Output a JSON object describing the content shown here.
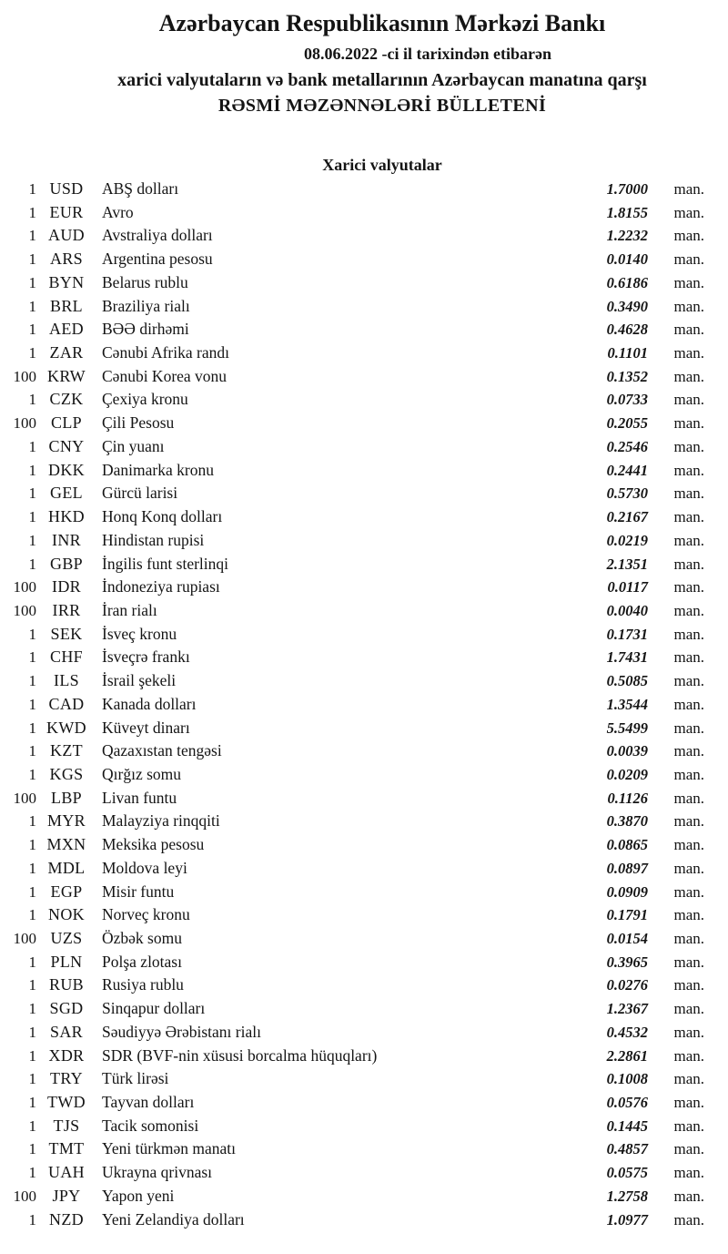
{
  "colors": {
    "background": "#ffffff",
    "text": "#141414"
  },
  "header": {
    "title": "Azərbaycan Respublikasının Mərkəzi Bankı",
    "date_line": "08.06.2022 -ci il tarixindən etibarən",
    "subtitle": "xarici valyutaların və bank metallarının Azərbaycan manatına qarşı",
    "bulletin_title": "RƏSMİ MƏZƏNNƏLƏRİ BÜLLETENİ"
  },
  "section": {
    "title": "Xarici valyutalar"
  },
  "unit_suffix": "man.",
  "rates": [
    {
      "qty": "1",
      "code": "USD",
      "name": "ABŞ dolları",
      "rate": "1.7000"
    },
    {
      "qty": "1",
      "code": "EUR",
      "name": "Avro",
      "rate": "1.8155"
    },
    {
      "qty": "1",
      "code": "AUD",
      "name": "Avstraliya dolları",
      "rate": "1.2232"
    },
    {
      "qty": "1",
      "code": "ARS",
      "name": "Argentina pesosu",
      "rate": "0.0140"
    },
    {
      "qty": "1",
      "code": "BYN",
      "name": "Belarus rublu",
      "rate": "0.6186"
    },
    {
      "qty": "1",
      "code": "BRL",
      "name": "Braziliya rialı",
      "rate": "0.3490"
    },
    {
      "qty": "1",
      "code": "AED",
      "name": "BƏƏ dirhəmi",
      "rate": "0.4628"
    },
    {
      "qty": "1",
      "code": "ZAR",
      "name": "Cənubi Afrika randı",
      "rate": "0.1101"
    },
    {
      "qty": "100",
      "code": "KRW",
      "name": "Cənubi Korea vonu",
      "rate": "0.1352"
    },
    {
      "qty": "1",
      "code": "CZK",
      "name": "Çexiya kronu",
      "rate": "0.0733"
    },
    {
      "qty": "100",
      "code": "CLP",
      "name": "Çili Pesosu",
      "rate": "0.2055"
    },
    {
      "qty": "1",
      "code": "CNY",
      "name": "Çin yuanı",
      "rate": "0.2546"
    },
    {
      "qty": "1",
      "code": "DKK",
      "name": "Danimarka kronu",
      "rate": "0.2441"
    },
    {
      "qty": "1",
      "code": "GEL",
      "name": "Gürcü larisi",
      "rate": "0.5730"
    },
    {
      "qty": "1",
      "code": "HKD",
      "name": "Honq Konq dolları",
      "rate": "0.2167"
    },
    {
      "qty": "1",
      "code": "INR",
      "name": "Hindistan rupisi",
      "rate": "0.0219"
    },
    {
      "qty": "1",
      "code": "GBP",
      "name": "İngilis funt sterlinqi",
      "rate": "2.1351"
    },
    {
      "qty": "100",
      "code": "IDR",
      "name": "İndoneziya rupiası",
      "rate": "0.0117"
    },
    {
      "qty": "100",
      "code": "IRR",
      "name": "İran rialı",
      "rate": "0.0040"
    },
    {
      "qty": "1",
      "code": "SEK",
      "name": "İsveç kronu",
      "rate": "0.1731"
    },
    {
      "qty": "1",
      "code": "CHF",
      "name": "İsveçrə frankı",
      "rate": "1.7431"
    },
    {
      "qty": "1",
      "code": "ILS",
      "name": "İsrail şekeli",
      "rate": "0.5085"
    },
    {
      "qty": "1",
      "code": "CAD",
      "name": "Kanada dolları",
      "rate": "1.3544"
    },
    {
      "qty": "1",
      "code": "KWD",
      "name": "Küveyt dinarı",
      "rate": "5.5499"
    },
    {
      "qty": "1",
      "code": "KZT",
      "name": "Qazaxıstan tengəsi",
      "rate": "0.0039"
    },
    {
      "qty": "1",
      "code": "KGS",
      "name": "Qırğız somu",
      "rate": "0.0209"
    },
    {
      "qty": "100",
      "code": "LBP",
      "name": "Livan funtu",
      "rate": "0.1126"
    },
    {
      "qty": "1",
      "code": "MYR",
      "name": "Malayziya rinqqiti",
      "rate": "0.3870"
    },
    {
      "qty": "1",
      "code": "MXN",
      "name": "Meksika pesosu",
      "rate": "0.0865"
    },
    {
      "qty": "1",
      "code": "MDL",
      "name": "Moldova leyi",
      "rate": "0.0897"
    },
    {
      "qty": "1",
      "code": "EGP",
      "name": "Misir funtu",
      "rate": "0.0909"
    },
    {
      "qty": "1",
      "code": "NOK",
      "name": "Norveç kronu",
      "rate": "0.1791"
    },
    {
      "qty": "100",
      "code": "UZS",
      "name": "Özbək somu",
      "rate": "0.0154"
    },
    {
      "qty": "1",
      "code": "PLN",
      "name": "Polşa zlotası",
      "rate": "0.3965"
    },
    {
      "qty": "1",
      "code": "RUB",
      "name": "Rusiya rublu",
      "rate": "0.0276"
    },
    {
      "qty": "1",
      "code": "SGD",
      "name": "Sinqapur dolları",
      "rate": "1.2367"
    },
    {
      "qty": "1",
      "code": "SAR",
      "name": "Səudiyyə Ərəbistanı rialı",
      "rate": "0.4532"
    },
    {
      "qty": "1",
      "code": "XDR",
      "name": "SDR (BVF-nin xüsusi borcalma hüquqları)",
      "rate": "2.2861"
    },
    {
      "qty": "1",
      "code": "TRY",
      "name": "Türk lirəsi",
      "rate": "0.1008"
    },
    {
      "qty": "1",
      "code": "TWD",
      "name": "Tayvan dolları",
      "rate": "0.0576"
    },
    {
      "qty": "1",
      "code": "TJS",
      "name": "Tacik somonisi",
      "rate": "0.1445"
    },
    {
      "qty": "1",
      "code": "TMT",
      "name": "Yeni türkmən manatı",
      "rate": "0.4857"
    },
    {
      "qty": "1",
      "code": "UAH",
      "name": "Ukrayna qrivnası",
      "rate": "0.0575"
    },
    {
      "qty": "100",
      "code": "JPY",
      "name": "Yapon yeni",
      "rate": "1.2758"
    },
    {
      "qty": "1",
      "code": "NZD",
      "name": "Yeni Zelandiya dolları",
      "rate": "1.0977"
    }
  ]
}
